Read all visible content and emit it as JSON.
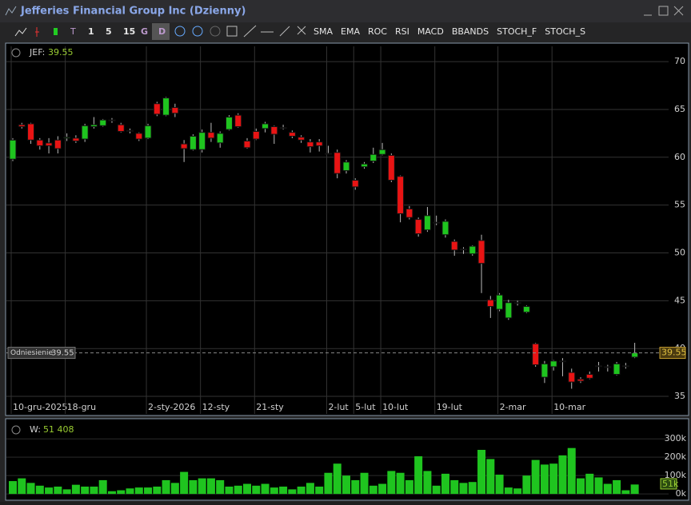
{
  "window_title": "Jefferies Financial Group Inc  (Dzienny)",
  "toolbar": {
    "intervals": [
      "1",
      "5",
      "15",
      "G",
      "D"
    ],
    "t": "T",
    "indicators": [
      "SMA",
      "EMA",
      "ROC",
      "RSI",
      "MACD",
      "BBANDS",
      "STOCH_F",
      "STOCH_S"
    ]
  },
  "chart_data": [
    {
      "type": "candlestick",
      "symbol_label": "JEF:",
      "categories": [
        "10-gru-2025",
        null,
        null,
        null,
        null,
        null,
        "18-gru",
        null,
        null,
        null,
        null,
        null,
        null,
        null,
        null,
        "2-sty-2026",
        null,
        null,
        null,
        null,
        null,
        "12-sty",
        null,
        null,
        null,
        null,
        null,
        "21-sty",
        null,
        null,
        null,
        null,
        null,
        null,
        null,
        "2-lut",
        null,
        null,
        "5-lut",
        null,
        null,
        "10-lut",
        null,
        null,
        null,
        null,
        null,
        "19-lut",
        null,
        null,
        null,
        null,
        null,
        null,
        "2-mar",
        null,
        null,
        null,
        null,
        null,
        "10-mar",
        null,
        null,
        null,
        null,
        null,
        null,
        null,
        null,
        null
      ],
      "open": [
        59.8,
        63.4,
        63.5,
        61.8,
        61.5,
        61.8,
        62,
        62,
        61.9,
        63.2,
        63.3,
        63.9,
        63.4,
        62.8,
        62.5,
        62,
        65.6,
        64.4,
        65.2,
        61.4,
        60.8,
        60.8,
        62.6,
        61.5,
        62.9,
        64.4,
        61.7,
        62.7,
        63,
        63.2,
        63.1,
        62.6,
        62.1,
        61.6,
        61.6,
        60.4,
        60.5,
        58.6,
        57.6,
        59,
        59.6,
        60.3,
        60.2,
        58,
        54.6,
        53.5,
        52.4,
        53.2,
        51.9,
        51.2,
        50.4,
        49.9,
        51.3,
        45.1,
        44.1,
        43.2,
        44.8,
        43.8,
        40.5,
        37,
        38.1,
        38.7,
        37.5,
        36.8,
        37.3,
        38.2,
        38.1,
        37.3,
        38.2,
        39.1
      ],
      "high": [
        62,
        63.6,
        63.6,
        62,
        62,
        62.2,
        62.5,
        62.3,
        63.5,
        64.2,
        64,
        64.1,
        63.6,
        63,
        62.6,
        63.5,
        65.8,
        66.3,
        65.6,
        61.8,
        62.4,
        62.9,
        63.6,
        62.7,
        64.4,
        64.6,
        62,
        63,
        63.7,
        63.3,
        63.4,
        62.8,
        62.3,
        61.9,
        61.9,
        61.2,
        60.8,
        59.7,
        57.8,
        59.5,
        61,
        61.5,
        60.4,
        58.1,
        54.9,
        53.7,
        54.8,
        53.9,
        53.5,
        51.4,
        50.6,
        50.8,
        51.9,
        45.5,
        45.8,
        45.1,
        45,
        44.5,
        40.6,
        38.7,
        38.8,
        39,
        37.9,
        37,
        37.6,
        38.6,
        38.3,
        38.6,
        38.5,
        40.6
      ],
      "low": [
        59.6,
        63,
        61.4,
        60.8,
        60.4,
        60.4,
        61.7,
        61.5,
        61.6,
        63,
        63.2,
        63.6,
        62.6,
        62.5,
        61.7,
        61.9,
        64.3,
        64.3,
        64.2,
        59.5,
        60.7,
        60.5,
        61.6,
        61,
        62.8,
        63.1,
        60.9,
        61.8,
        62.6,
        61.4,
        62.9,
        62,
        61.5,
        60.5,
        60.6,
        60.3,
        57.8,
        58.3,
        56.6,
        58.8,
        59.4,
        60.2,
        57.4,
        53.2,
        53.5,
        51.7,
        52.2,
        52.9,
        51.6,
        49.7,
        49.9,
        49.7,
        45.8,
        43.2,
        43.9,
        43,
        44.5,
        43.7,
        38.1,
        36.4,
        37.7,
        37.1,
        35.8,
        36.4,
        36.8,
        37.6,
        37.6,
        37.2,
        37.9,
        39
      ],
      "close": [
        61.8,
        63.2,
        61.8,
        61.2,
        61.2,
        60.9,
        62.1,
        61.7,
        63.3,
        63.4,
        63.9,
        63.9,
        62.7,
        62.8,
        61.9,
        63.3,
        64.5,
        66.2,
        64.6,
        60.9,
        62.2,
        62.6,
        62,
        62.5,
        64.2,
        63.2,
        61,
        61.9,
        63.5,
        62.4,
        63.1,
        62.2,
        61.8,
        61.1,
        61.2,
        60.4,
        58.3,
        59.5,
        56.9,
        59.3,
        60.3,
        60.8,
        57.6,
        54.1,
        53.7,
        52,
        53.9,
        53.2,
        53.3,
        50.3,
        50.4,
        50.7,
        48.9,
        44.4,
        45.6,
        44.8,
        44.8,
        44.4,
        38.3,
        38.4,
        38.7,
        38.7,
        36.5,
        36.6,
        36.9,
        38.2,
        38.1,
        38.4,
        38.2,
        39.55
      ],
      "up_color": "#1fc41f",
      "down_color": "#e81414",
      "reference": {
        "label": "Odniesienie",
        "value": 39.55
      },
      "ylim": [
        34.67,
        70.76
      ],
      "yticks": [
        35,
        40,
        45,
        50,
        55,
        60,
        65,
        70
      ],
      "grid": true
    },
    {
      "type": "bar",
      "value_name": "W:",
      "current_label": "51 408",
      "current_axis_label": "51k",
      "values": [
        70000,
        85000,
        60000,
        45000,
        35000,
        40000,
        25000,
        50000,
        40000,
        40000,
        75000,
        15000,
        20000,
        30000,
        35000,
        35000,
        40000,
        75000,
        60000,
        120000,
        75000,
        85000,
        85000,
        75000,
        40000,
        45000,
        55000,
        45000,
        55000,
        35000,
        40000,
        25000,
        40000,
        60000,
        40000,
        115000,
        165000,
        100000,
        75000,
        115000,
        45000,
        55000,
        125000,
        115000,
        75000,
        205000,
        125000,
        45000,
        110000,
        75000,
        60000,
        65000,
        240000,
        190000,
        105000,
        35000,
        30000,
        100000,
        185000,
        160000,
        165000,
        210000,
        250000,
        85000,
        110000,
        90000,
        55000,
        75000,
        20000,
        51408
      ],
      "color": "#1fc41f",
      "ylim": [
        -8000,
        340000
      ],
      "yticks": [
        {
          "value": 0,
          "label": "0k"
        },
        {
          "value": 100000,
          "label": "100k"
        },
        {
          "value": 200000,
          "label": "200k"
        },
        {
          "value": 300000,
          "label": "300k"
        }
      ]
    }
  ]
}
